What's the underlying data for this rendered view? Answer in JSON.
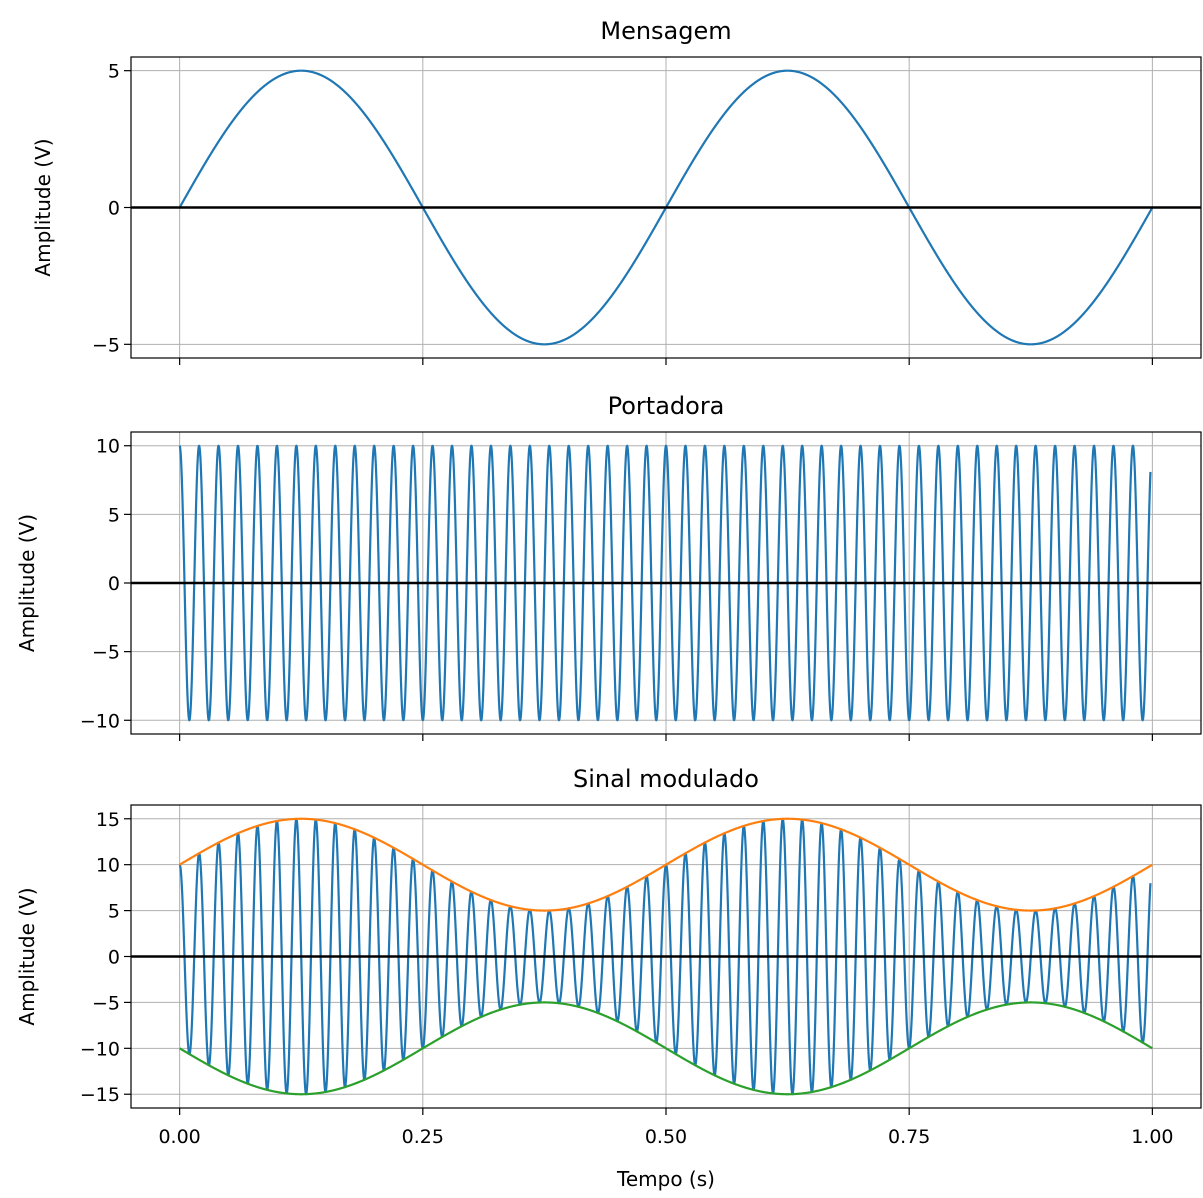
{
  "figure": {
    "xlabel": "Tempo (s)",
    "x_ticks": [
      0.0,
      0.25,
      0.5,
      0.75,
      1.0
    ],
    "x_tick_labels": [
      "0.00",
      "0.25",
      "0.50",
      "0.75",
      "1.00"
    ]
  },
  "chart_data": [
    {
      "type": "line",
      "title": "Mensagem",
      "xlabel": "",
      "ylabel": "Amplitude (V)",
      "xlim": [
        -0.05,
        1.05
      ],
      "ylim": [
        -5.5,
        5.5
      ],
      "x_ticks": [
        0.0,
        0.25,
        0.5,
        0.75,
        1.0
      ],
      "y_ticks": [
        -5,
        0,
        5
      ],
      "y_tick_labels": [
        "−5",
        "0",
        "5"
      ],
      "grid": true,
      "zero_line": true,
      "series": [
        {
          "color": "#1f77b4",
          "x": [
            0.0,
            0.125,
            0.25,
            0.375,
            0.5,
            0.625,
            0.75,
            0.875,
            1.0
          ],
          "values": [
            0,
            5,
            0,
            -5,
            0,
            5,
            0,
            -5,
            0
          ]
        }
      ]
    },
    {
      "type": "line",
      "title": "Portadora",
      "xlabel": "",
      "ylabel": "Amplitude (V)",
      "xlim": [
        -0.05,
        1.05
      ],
      "ylim": [
        -11,
        11
      ],
      "x_ticks": [
        0.0,
        0.25,
        0.5,
        0.75,
        1.0
      ],
      "y_ticks": [
        -10,
        -5,
        0,
        5,
        10
      ],
      "y_tick_labels": [
        "−10",
        "−5",
        "0",
        "5",
        "10"
      ],
      "grid": true,
      "zero_line": true,
      "series": [
        {
          "color": "#1f77b4",
          "x": [
            0.0,
            0.01,
            0.02,
            0.98,
            0.99,
            0.998
          ],
          "values": [
            10,
            -10,
            10,
            10,
            -10,
            8.2
          ]
        }
      ]
    },
    {
      "type": "line",
      "title": "Sinal modulado",
      "xlabel": "Tempo (s)",
      "ylabel": "Amplitude (V)",
      "xlim": [
        -0.05,
        1.05
      ],
      "ylim": [
        -16.5,
        16.5
      ],
      "x_ticks": [
        0.0,
        0.25,
        0.5,
        0.75,
        1.0
      ],
      "x_tick_labels": [
        "0.00",
        "0.25",
        "0.50",
        "0.75",
        "1.00"
      ],
      "y_ticks": [
        -15,
        -10,
        -5,
        0,
        5,
        10,
        15
      ],
      "y_tick_labels": [
        "−15",
        "−10",
        "−5",
        "0",
        "5",
        "10",
        "15"
      ],
      "grid": true,
      "zero_line": true,
      "series": [
        {
          "color": "#1f77b4",
          "x": [
            0.0,
            0.125,
            0.375,
            0.625,
            0.875,
            0.998
          ],
          "values": [
            10,
            15,
            5,
            15,
            5,
            8.2
          ]
        },
        {
          "color": "#ff7f0e",
          "x": [
            0.0,
            0.125,
            0.25,
            0.375,
            0.5,
            0.625,
            0.75,
            0.875,
            1.0
          ],
          "values": [
            10,
            15,
            10,
            5,
            10,
            15,
            10,
            5,
            10
          ]
        },
        {
          "color": "#2ca02c",
          "x": [
            0.0,
            0.125,
            0.25,
            0.375,
            0.5,
            0.625,
            0.75,
            0.875,
            1.0
          ],
          "values": [
            -10,
            -15,
            -10,
            -5,
            -10,
            -15,
            -10,
            -5,
            -10
          ]
        }
      ]
    }
  ]
}
